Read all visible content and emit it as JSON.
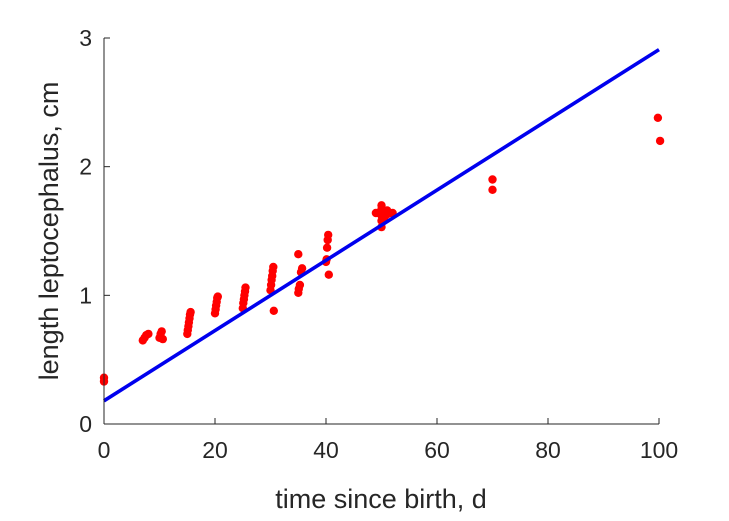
{
  "chart_data": {
    "type": "scatter",
    "xlabel": "time since birth, d",
    "ylabel": "length leptocephalus, cm",
    "xlim": [
      0,
      100
    ],
    "ylim": [
      0,
      3
    ],
    "xticks": [
      0,
      20,
      40,
      60,
      80,
      100
    ],
    "yticks": [
      0,
      1,
      2,
      3
    ],
    "grid": false,
    "series": [
      {
        "kind": "points",
        "color": "#ff0000",
        "points": [
          [
            0,
            0.33
          ],
          [
            0,
            0.36
          ],
          [
            7,
            0.65
          ],
          [
            7.3,
            0.67
          ],
          [
            7.6,
            0.69
          ],
          [
            8,
            0.7
          ],
          [
            10,
            0.67
          ],
          [
            10.2,
            0.7
          ],
          [
            10.4,
            0.72
          ],
          [
            10.6,
            0.66
          ],
          [
            15,
            0.7
          ],
          [
            15.1,
            0.73
          ],
          [
            15.2,
            0.76
          ],
          [
            15.3,
            0.79
          ],
          [
            15.4,
            0.82
          ],
          [
            15.5,
            0.85
          ],
          [
            15.6,
            0.87
          ],
          [
            20,
            0.86
          ],
          [
            20.1,
            0.89
          ],
          [
            20.2,
            0.92
          ],
          [
            20.3,
            0.95
          ],
          [
            20.4,
            0.98
          ],
          [
            20.5,
            0.99
          ],
          [
            25,
            0.9
          ],
          [
            25.1,
            0.94
          ],
          [
            25.2,
            0.97
          ],
          [
            25.3,
            1.0
          ],
          [
            25.4,
            1.03
          ],
          [
            25.5,
            1.06
          ],
          [
            30,
            1.04
          ],
          [
            30.1,
            1.08
          ],
          [
            30.2,
            1.12
          ],
          [
            30.3,
            1.15
          ],
          [
            30.4,
            1.19
          ],
          [
            30.5,
            1.22
          ],
          [
            30.6,
            0.88
          ],
          [
            35,
            1.02
          ],
          [
            35.1,
            1.05
          ],
          [
            35.3,
            1.08
          ],
          [
            35.5,
            1.18
          ],
          [
            35.7,
            1.21
          ],
          [
            35,
            1.32
          ],
          [
            40,
            1.26
          ],
          [
            40.1,
            1.28
          ],
          [
            40.2,
            1.37
          ],
          [
            40.3,
            1.43
          ],
          [
            40.4,
            1.47
          ],
          [
            40.5,
            1.16
          ],
          [
            49,
            1.64
          ],
          [
            49.5,
            1.64
          ],
          [
            50,
            1.53
          ],
          [
            50,
            1.58
          ],
          [
            50,
            1.62
          ],
          [
            50,
            1.67
          ],
          [
            50,
            1.7
          ],
          [
            50.5,
            1.63
          ],
          [
            51,
            1.63
          ],
          [
            51.5,
            1.64
          ],
          [
            52,
            1.64
          ],
          [
            50.5,
            1.6
          ],
          [
            51,
            1.66
          ],
          [
            70,
            1.82
          ],
          [
            70,
            1.9
          ],
          [
            99.8,
            2.38
          ],
          [
            100.2,
            2.2
          ]
        ]
      },
      {
        "kind": "line",
        "color": "#0000ee",
        "x": [
          0,
          100
        ],
        "y": [
          0.18,
          2.91
        ]
      }
    ]
  }
}
